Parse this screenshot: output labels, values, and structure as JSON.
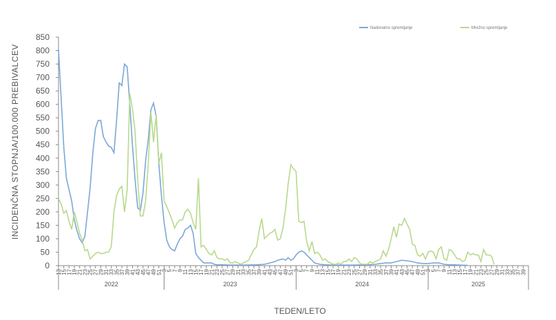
{
  "chart_data": {
    "type": "line",
    "title": "",
    "xlabel": "TEDEN/LETO",
    "ylabel": "INCIDENČNA STOPNJA/100.000 PREBIVALCEV",
    "ylim": [
      0,
      850
    ],
    "ytick_step": 50,
    "grid": false,
    "legend_position": "top-right",
    "years": [
      "2022",
      "2023",
      "2024",
      "2025"
    ],
    "year_week_tick_labels": [
      [
        "13",
        "15",
        "17",
        "19",
        "21",
        "23",
        "25",
        "27",
        "29",
        "31",
        "33",
        "35",
        "37",
        "39",
        "41",
        "43",
        "45",
        "47",
        "49",
        "51"
      ],
      [
        "3",
        "5",
        "7",
        "9",
        "11",
        "13",
        "15",
        "17",
        "19",
        "21",
        "23",
        "25",
        "27",
        "29",
        "31",
        "33",
        "35",
        "37",
        "39",
        "41",
        "43",
        "45",
        "47",
        "49",
        "51"
      ],
      [
        "3",
        "5",
        "7",
        "9",
        "11",
        "13",
        "15",
        "17",
        "19",
        "21",
        "23",
        "25",
        "27",
        "29",
        "31",
        "33",
        "35",
        "37",
        "39",
        "41",
        "43",
        "45",
        "47",
        "49",
        "51"
      ],
      [
        "3",
        "5",
        "7",
        "9",
        "11",
        "13",
        "15",
        "17",
        "19",
        "21",
        "23",
        "25",
        "27",
        "29",
        "31",
        "33",
        "35",
        "37",
        "39"
      ]
    ],
    "series": [
      {
        "name": "Nadonalno spremljanje",
        "color": "#7ba7d7",
        "points": [
          [
            0,
            805
          ],
          [
            2,
            440
          ],
          [
            3,
            325
          ],
          [
            5,
            240
          ],
          [
            6,
            170
          ],
          [
            7,
            130
          ],
          [
            8,
            100
          ],
          [
            9,
            85
          ],
          [
            10,
            110
          ],
          [
            11,
            200
          ],
          [
            12,
            290
          ],
          [
            13,
            420
          ],
          [
            14,
            510
          ],
          [
            15,
            540
          ],
          [
            16,
            540
          ],
          [
            17,
            480
          ],
          [
            18,
            460
          ],
          [
            19,
            445
          ],
          [
            20,
            440
          ],
          [
            21,
            420
          ],
          [
            22,
            540
          ],
          [
            23,
            680
          ],
          [
            24,
            670
          ],
          [
            25,
            750
          ],
          [
            26,
            740
          ],
          [
            27,
            600
          ],
          [
            28,
            450
          ],
          [
            29,
            320
          ],
          [
            30,
            215
          ],
          [
            31,
            205
          ],
          [
            32,
            270
          ],
          [
            33,
            390
          ],
          [
            34,
            470
          ],
          [
            35,
            580
          ],
          [
            36,
            605
          ],
          [
            37,
            555
          ],
          [
            38,
            380
          ],
          [
            39,
            260
          ],
          [
            40,
            160
          ],
          [
            41,
            95
          ],
          [
            42,
            70
          ],
          [
            43,
            60
          ],
          [
            44,
            55
          ],
          [
            45,
            80
          ],
          [
            46,
            100
          ],
          [
            47,
            110
          ],
          [
            48,
            135
          ],
          [
            49,
            140
          ],
          [
            50,
            150
          ],
          [
            51,
            120
          ],
          [
            52,
            45
          ],
          [
            53,
            30
          ],
          [
            54,
            20
          ],
          [
            55,
            10
          ],
          [
            56,
            10
          ],
          [
            57,
            10
          ],
          [
            58,
            10
          ],
          [
            59,
            5
          ],
          [
            60,
            3
          ],
          [
            62,
            3
          ],
          [
            65,
            2
          ],
          [
            70,
            2
          ],
          [
            75,
            3
          ],
          [
            78,
            5
          ],
          [
            80,
            10
          ],
          [
            82,
            15
          ],
          [
            83,
            20
          ],
          [
            85,
            25
          ],
          [
            86,
            20
          ],
          [
            87,
            30
          ],
          [
            88,
            20
          ],
          [
            89,
            25
          ],
          [
            90,
            40
          ],
          [
            91,
            50
          ],
          [
            92,
            55
          ],
          [
            93,
            50
          ],
          [
            94,
            40
          ],
          [
            95,
            30
          ],
          [
            96,
            20
          ],
          [
            97,
            10
          ],
          [
            99,
            5
          ],
          [
            101,
            3
          ],
          [
            104,
            2
          ],
          [
            108,
            2
          ],
          [
            112,
            2
          ],
          [
            116,
            3
          ],
          [
            120,
            5
          ],
          [
            122,
            8
          ],
          [
            124,
            10
          ],
          [
            126,
            10
          ],
          [
            128,
            15
          ],
          [
            130,
            20
          ],
          [
            132,
            18
          ],
          [
            134,
            15
          ],
          [
            136,
            10
          ],
          [
            138,
            8
          ],
          [
            140,
            8
          ],
          [
            142,
            10
          ],
          [
            144,
            10
          ],
          [
            146,
            5
          ],
          [
            148,
            3
          ],
          [
            150,
            3
          ],
          [
            152,
            2
          ],
          [
            155,
            1
          ]
        ]
      },
      {
        "name": "Mrežno spremljanje",
        "color": "#b7d98c",
        "points": [
          [
            0,
            250
          ],
          [
            1,
            230
          ],
          [
            2,
            195
          ],
          [
            3,
            205
          ],
          [
            4,
            165
          ],
          [
            5,
            135
          ],
          [
            6,
            200
          ],
          [
            7,
            160
          ],
          [
            8,
            120
          ],
          [
            9,
            95
          ],
          [
            10,
            55
          ],
          [
            11,
            60
          ],
          [
            12,
            25
          ],
          [
            13,
            35
          ],
          [
            14,
            45
          ],
          [
            15,
            50
          ],
          [
            16,
            45
          ],
          [
            17,
            45
          ],
          [
            18,
            50
          ],
          [
            19,
            50
          ],
          [
            20,
            70
          ],
          [
            21,
            200
          ],
          [
            22,
            260
          ],
          [
            23,
            285
          ],
          [
            24,
            295
          ],
          [
            25,
            200
          ],
          [
            26,
            280
          ],
          [
            27,
            640
          ],
          [
            28,
            585
          ],
          [
            29,
            500
          ],
          [
            30,
            320
          ],
          [
            31,
            185
          ],
          [
            32,
            185
          ],
          [
            33,
            240
          ],
          [
            34,
            380
          ],
          [
            35,
            570
          ],
          [
            36,
            460
          ],
          [
            37,
            560
          ],
          [
            38,
            380
          ],
          [
            39,
            420
          ],
          [
            40,
            240
          ],
          [
            41,
            220
          ],
          [
            42,
            195
          ],
          [
            43,
            170
          ],
          [
            44,
            140
          ],
          [
            45,
            160
          ],
          [
            46,
            170
          ],
          [
            47,
            170
          ],
          [
            48,
            200
          ],
          [
            49,
            210
          ],
          [
            50,
            195
          ],
          [
            51,
            160
          ],
          [
            52,
            135
          ],
          [
            53,
            325
          ],
          [
            54,
            70
          ],
          [
            55,
            75
          ],
          [
            56,
            60
          ],
          [
            57,
            45
          ],
          [
            58,
            40
          ],
          [
            59,
            55
          ],
          [
            60,
            30
          ],
          [
            61,
            25
          ],
          [
            62,
            25
          ],
          [
            63,
            20
          ],
          [
            64,
            25
          ],
          [
            65,
            10
          ],
          [
            66,
            10
          ],
          [
            67,
            15
          ],
          [
            68,
            10
          ],
          [
            69,
            5
          ],
          [
            70,
            10
          ],
          [
            71,
            15
          ],
          [
            72,
            20
          ],
          [
            73,
            40
          ],
          [
            74,
            60
          ],
          [
            75,
            70
          ],
          [
            76,
            130
          ],
          [
            77,
            175
          ],
          [
            78,
            100
          ],
          [
            79,
            110
          ],
          [
            80,
            120
          ],
          [
            81,
            125
          ],
          [
            82,
            135
          ],
          [
            83,
            95
          ],
          [
            84,
            100
          ],
          [
            85,
            140
          ],
          [
            86,
            210
          ],
          [
            87,
            305
          ],
          [
            88,
            375
          ],
          [
            89,
            360
          ],
          [
            90,
            350
          ],
          [
            91,
            165
          ],
          [
            92,
            160
          ],
          [
            93,
            165
          ],
          [
            94,
            90
          ],
          [
            95,
            55
          ],
          [
            96,
            90
          ],
          [
            97,
            45
          ],
          [
            98,
            50
          ],
          [
            99,
            40
          ],
          [
            100,
            20
          ],
          [
            101,
            25
          ],
          [
            102,
            15
          ],
          [
            103,
            10
          ],
          [
            104,
            5
          ],
          [
            105,
            5
          ],
          [
            106,
            10
          ],
          [
            107,
            5
          ],
          [
            108,
            15
          ],
          [
            109,
            15
          ],
          [
            110,
            25
          ],
          [
            111,
            15
          ],
          [
            112,
            30
          ],
          [
            113,
            25
          ],
          [
            114,
            10
          ],
          [
            115,
            5
          ],
          [
            116,
            5
          ],
          [
            117,
            5
          ],
          [
            118,
            15
          ],
          [
            119,
            10
          ],
          [
            120,
            15
          ],
          [
            121,
            20
          ],
          [
            122,
            25
          ],
          [
            123,
            55
          ],
          [
            124,
            35
          ],
          [
            125,
            60
          ],
          [
            126,
            100
          ],
          [
            127,
            145
          ],
          [
            128,
            105
          ],
          [
            129,
            155
          ],
          [
            130,
            150
          ],
          [
            131,
            175
          ],
          [
            132,
            155
          ],
          [
            133,
            135
          ],
          [
            134,
            80
          ],
          [
            135,
            75
          ],
          [
            136,
            40
          ],
          [
            137,
            35
          ],
          [
            138,
            45
          ],
          [
            139,
            25
          ],
          [
            140,
            50
          ],
          [
            141,
            55
          ],
          [
            142,
            50
          ],
          [
            143,
            25
          ],
          [
            144,
            60
          ],
          [
            145,
            70
          ],
          [
            146,
            25
          ],
          [
            147,
            20
          ],
          [
            148,
            60
          ],
          [
            149,
            55
          ],
          [
            150,
            40
          ],
          [
            151,
            25
          ],
          [
            152,
            25
          ],
          [
            153,
            15
          ],
          [
            154,
            20
          ],
          [
            155,
            50
          ],
          [
            156,
            40
          ],
          [
            157,
            45
          ],
          [
            158,
            40
          ],
          [
            159,
            40
          ],
          [
            160,
            15
          ],
          [
            161,
            60
          ],
          [
            162,
            40
          ],
          [
            163,
            40
          ],
          [
            164,
            35
          ],
          [
            165,
            5
          ]
        ]
      }
    ]
  }
}
